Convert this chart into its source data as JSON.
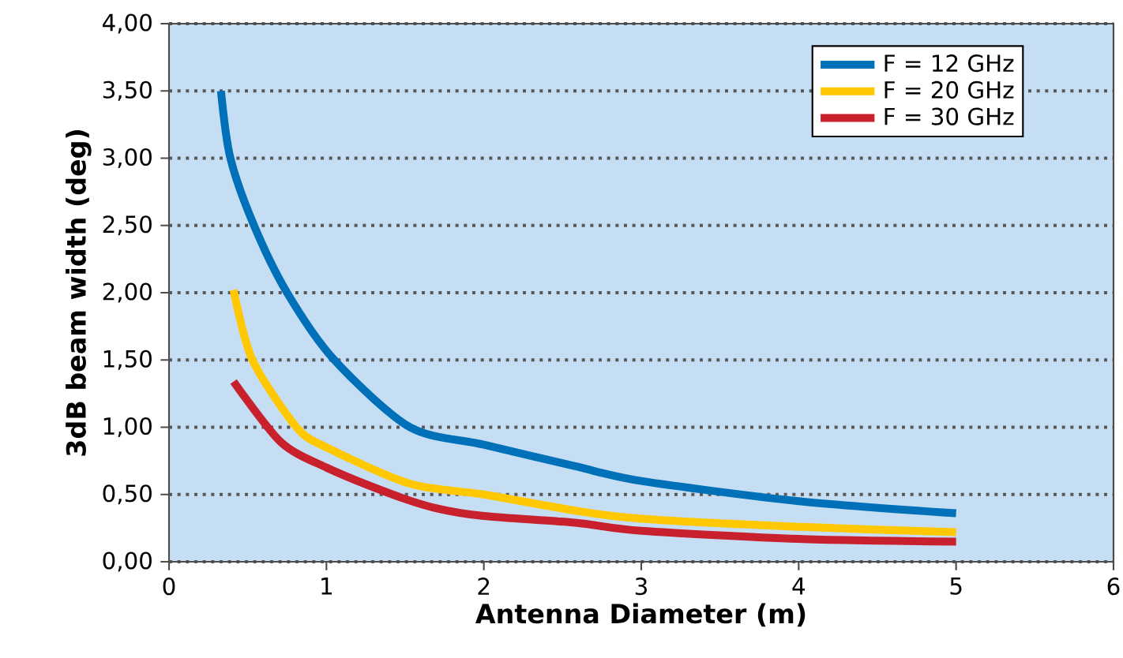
{
  "chart_data": {
    "type": "line",
    "xlabel": "Antenna Diameter (m)",
    "ylabel": "3dB beam width (deg)",
    "xlim": [
      0,
      6
    ],
    "xticks": [
      0,
      1,
      2,
      3,
      4,
      5,
      6
    ],
    "ylim": [
      0,
      4
    ],
    "yticks": [
      {
        "value": 0,
        "label": "0,00"
      },
      {
        "value": 0.5,
        "label": "0,50"
      },
      {
        "value": 1,
        "label": "1,00"
      },
      {
        "value": 1.5,
        "label": "1,50"
      },
      {
        "value": 2,
        "label": "2,00"
      },
      {
        "value": 2.5,
        "label": "2,50"
      },
      {
        "value": 3,
        "label": "3,00"
      },
      {
        "value": 3.5,
        "label": "3,50"
      },
      {
        "value": 4,
        "label": "4,00"
      }
    ],
    "grid": "y",
    "legend": "top right",
    "marker": "none",
    "line_style": "solid",
    "series": [
      {
        "name": "F = 12 GHz",
        "color": "#0070b8",
        "x": [
          0.33,
          0.39,
          0.54,
          0.75,
          1.05,
          1.53,
          2,
          2.58,
          3,
          4,
          5
        ],
        "values": [
          3.5,
          3.0,
          2.5,
          2.0,
          1.5,
          1.0,
          0.87,
          0.71,
          0.6,
          0.45,
          0.36
        ]
      },
      {
        "name": "F = 20 GHz",
        "color": "#ffc800",
        "x": [
          0.41,
          0.53,
          0.81,
          1,
          1.53,
          2,
          2.58,
          3,
          4,
          5
        ],
        "values": [
          2.02,
          1.5,
          1.0,
          0.85,
          0.58,
          0.5,
          0.38,
          0.32,
          0.26,
          0.22
        ]
      },
      {
        "name": "F = 30 GHz",
        "color": "#c8202c",
        "x": [
          0.41,
          0.71,
          1,
          1.42,
          1.69,
          2,
          2.58,
          3,
          4,
          5
        ],
        "values": [
          1.34,
          0.89,
          0.7,
          0.5,
          0.4,
          0.34,
          0.29,
          0.23,
          0.17,
          0.15
        ]
      }
    ]
  }
}
